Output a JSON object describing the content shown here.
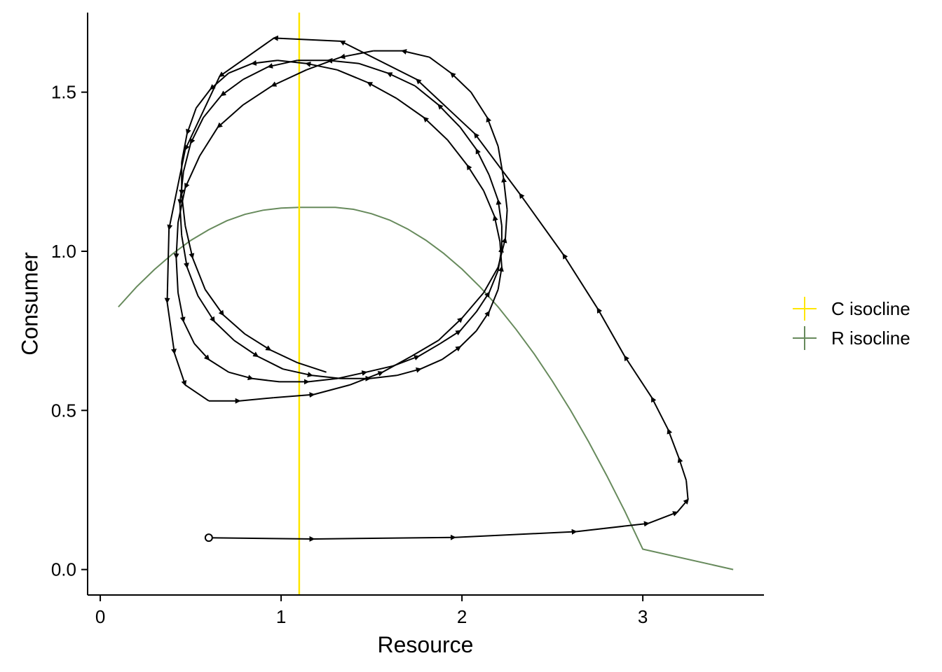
{
  "chart_data": {
    "type": "line",
    "xlabel": "Resource",
    "ylabel": "Consumer",
    "xlim": [
      -0.07,
      3.67
    ],
    "ylim": [
      -0.08,
      1.75
    ],
    "x_ticks": [
      {
        "value": 0,
        "label": "0"
      },
      {
        "value": 1,
        "label": "1"
      },
      {
        "value": 2,
        "label": "2"
      },
      {
        "value": 3,
        "label": "3"
      }
    ],
    "y_ticks": [
      {
        "value": 0.0,
        "label": "0.0"
      },
      {
        "value": 0.5,
        "label": "0.5"
      },
      {
        "value": 1.0,
        "label": "1.0"
      },
      {
        "value": 1.5,
        "label": "1.5"
      }
    ],
    "grid": false,
    "legend_position": "right",
    "series": [
      {
        "name": "C isocline",
        "kind": "vline",
        "color": "#FFE600",
        "x_value": 1.1
      },
      {
        "name": "R isocline",
        "kind": "curve",
        "color": "#678A5C",
        "x": [
          0.1,
          0.2,
          0.3,
          0.4,
          0.5,
          0.6,
          0.7,
          0.8,
          0.9,
          1.0,
          1.1,
          1.2,
          1.3,
          1.4,
          1.5,
          1.6,
          1.7,
          1.8,
          1.9,
          2.0,
          2.1,
          2.2,
          2.3,
          2.4,
          2.5,
          2.6,
          2.7,
          2.8,
          2.9,
          3.0,
          3.1,
          3.2,
          3.3,
          3.4,
          3.5
        ],
        "y": [
          0.825,
          0.888,
          0.943,
          0.992,
          1.034,
          1.068,
          1.096,
          1.116,
          1.129,
          1.136,
          1.138,
          1.138,
          1.138,
          1.132,
          1.118,
          1.098,
          1.07,
          1.035,
          0.993,
          0.944,
          0.888,
          0.825,
          0.754,
          0.677,
          0.592,
          0.501,
          0.402,
          0.296,
          0.184,
          0.064,
          -0.003,
          0.0,
          0.0,
          0.0,
          0.0
        ]
      },
      {
        "name": "",
        "kind": "trajectory",
        "color": "#000000",
        "start_marker": "open-circle",
        "x": [
          0.6,
          1.18,
          1.96,
          2.63,
          3.03,
          3.19,
          3.25,
          3.24,
          3.2,
          3.14,
          3.05,
          2.9,
          2.75,
          2.56,
          2.32,
          2.07,
          1.75,
          1.33,
          0.96,
          0.66,
          0.47,
          0.38,
          0.37,
          0.41,
          0.47,
          0.6,
          0.77,
          0.96,
          1.18,
          1.38,
          1.56,
          1.72,
          1.87,
          2.0,
          2.12,
          2.2,
          2.24,
          2.25,
          2.23,
          2.2,
          2.14,
          2.05,
          1.94,
          1.82,
          1.67,
          1.51,
          1.33,
          1.14,
          0.95,
          0.79,
          0.65,
          0.55,
          0.47,
          0.43,
          0.42,
          0.43,
          0.46,
          0.52,
          0.6,
          0.71,
          0.84,
          0.99,
          1.15,
          1.31,
          1.47,
          1.62,
          1.76,
          1.88,
          1.99,
          2.08,
          2.15,
          2.2,
          2.22,
          2.22,
          2.2,
          2.15,
          2.08,
          1.99,
          1.87,
          1.74,
          1.59,
          1.43,
          1.26,
          1.09,
          0.93,
          0.79,
          0.67,
          0.57,
          0.5,
          0.46,
          0.44,
          0.45,
          0.48,
          0.54,
          0.63,
          0.74,
          0.87,
          1.01,
          1.17,
          1.33,
          1.49,
          1.64,
          1.77,
          1.89,
          1.99,
          2.08,
          2.15,
          2.2,
          2.22,
          2.21,
          2.18,
          2.12,
          2.03,
          1.92,
          1.79,
          1.64,
          1.48,
          1.31,
          1.14,
          0.98,
          0.84,
          0.71,
          0.61,
          0.53,
          0.48,
          0.45,
          0.45,
          0.47,
          0.51,
          0.58,
          0.68,
          0.8,
          0.94,
          1.09,
          1.25
        ],
        "y": [
          0.1,
          0.096,
          0.101,
          0.119,
          0.145,
          0.18,
          0.22,
          0.28,
          0.35,
          0.44,
          0.54,
          0.67,
          0.82,
          0.99,
          1.18,
          1.37,
          1.54,
          1.66,
          1.67,
          1.55,
          1.32,
          1.07,
          0.84,
          0.68,
          0.58,
          0.53,
          0.53,
          0.54,
          0.55,
          0.58,
          0.62,
          0.67,
          0.72,
          0.79,
          0.87,
          0.95,
          1.04,
          1.13,
          1.23,
          1.33,
          1.42,
          1.5,
          1.56,
          1.61,
          1.63,
          1.63,
          1.61,
          1.57,
          1.52,
          1.46,
          1.39,
          1.3,
          1.2,
          1.09,
          0.98,
          0.87,
          0.78,
          0.71,
          0.66,
          0.62,
          0.6,
          0.59,
          0.59,
          0.6,
          0.62,
          0.64,
          0.67,
          0.71,
          0.75,
          0.81,
          0.87,
          0.94,
          1.01,
          1.08,
          1.16,
          1.24,
          1.32,
          1.39,
          1.46,
          1.52,
          1.56,
          1.59,
          1.6,
          1.6,
          1.58,
          1.54,
          1.49,
          1.42,
          1.34,
          1.25,
          1.15,
          1.05,
          0.95,
          0.86,
          0.78,
          0.72,
          0.67,
          0.63,
          0.61,
          0.6,
          0.6,
          0.61,
          0.63,
          0.66,
          0.7,
          0.75,
          0.81,
          0.88,
          0.95,
          1.03,
          1.11,
          1.19,
          1.27,
          1.35,
          1.42,
          1.48,
          1.53,
          1.57,
          1.59,
          1.6,
          1.59,
          1.56,
          1.51,
          1.45,
          1.37,
          1.28,
          1.18,
          1.08,
          0.98,
          0.88,
          0.8,
          0.74,
          0.69,
          0.65,
          0.62
        ],
        "arrow_indices": [
          1,
          2,
          3,
          4,
          5,
          6,
          8,
          9,
          10,
          11,
          12,
          13,
          14,
          15,
          16,
          17,
          18,
          19,
          20,
          21,
          22,
          23,
          24,
          26,
          28,
          30,
          33,
          36,
          38,
          40,
          42,
          44,
          46,
          48,
          50,
          52,
          54,
          56,
          58,
          60,
          62,
          64,
          66,
          68,
          70,
          72,
          74,
          76,
          78,
          80,
          82,
          84,
          86,
          88,
          90,
          92,
          94,
          96,
          98,
          100,
          102,
          104,
          106,
          108,
          110,
          112,
          114,
          116,
          118,
          120,
          122,
          124,
          126,
          128,
          130,
          132
        ]
      }
    ]
  }
}
